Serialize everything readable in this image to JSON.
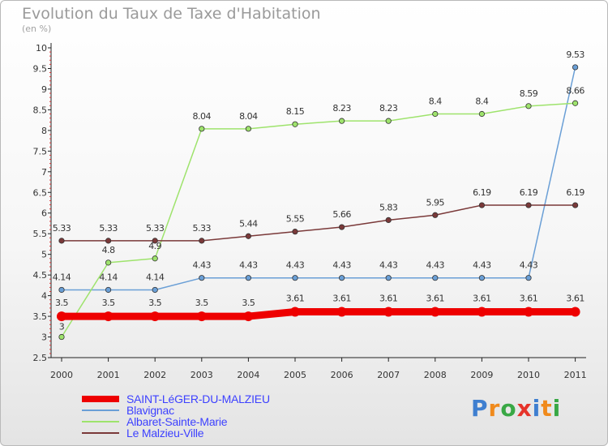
{
  "chart_data": {
    "type": "line",
    "title": "Evolution du Taux de Taxe d'Habitation",
    "ylabel": "(en %)",
    "xlabel": "",
    "ylim": [
      2.5,
      10
    ],
    "grid": false,
    "legend_position": "bottom-left",
    "x": [
      "2000",
      "2001",
      "2002",
      "2003",
      "2004",
      "2005",
      "2006",
      "2007",
      "2008",
      "2009",
      "2010",
      "2011"
    ],
    "yticks": [
      "2.5",
      "3",
      "3.5",
      "4",
      "4.5",
      "5",
      "5.5",
      "6",
      "6.5",
      "7",
      "7.5",
      "8",
      "8.5",
      "9",
      "9.5",
      "10"
    ],
    "series": [
      {
        "name": "SAINT-LéGER-DU-MALZIEU",
        "color": "#ee0000",
        "values": [
          3.5,
          3.5,
          3.5,
          3.5,
          3.5,
          3.61,
          3.61,
          3.61,
          3.61,
          3.61,
          3.61,
          3.61
        ],
        "labels": [
          "3.5",
          "3.5",
          "3.5",
          "3.5",
          "3.5",
          "3.61",
          "3.61",
          "3.61",
          "3.61",
          "3.61",
          "3.61",
          "3.61"
        ]
      },
      {
        "name": "Blavignac",
        "color": "#6a9fd6",
        "values": [
          4.14,
          4.14,
          4.14,
          4.43,
          4.43,
          4.43,
          4.43,
          4.43,
          4.43,
          4.43,
          4.43,
          9.53
        ],
        "labels": [
          "4.14",
          "4.14",
          "4.14",
          "4.43",
          "4.43",
          "4.43",
          "4.43",
          "4.43",
          "4.43",
          "4.43",
          "4.43",
          "9.53"
        ]
      },
      {
        "name": "Albaret-Sainte-Marie",
        "color": "#9ee36c",
        "values": [
          3,
          4.8,
          4.9,
          8.04,
          8.04,
          8.15,
          8.23,
          8.23,
          8.4,
          8.4,
          8.59,
          8.66
        ],
        "labels": [
          "3",
          "4.8",
          "4.9",
          "8.04",
          "8.04",
          "8.15",
          "8.23",
          "8.23",
          "8.4",
          "8.4",
          "8.59",
          "8.66"
        ]
      },
      {
        "name": "Le Malzieu-Ville",
        "color": "#7a3939",
        "values": [
          5.33,
          5.33,
          5.33,
          5.33,
          5.44,
          5.55,
          5.66,
          5.83,
          5.95,
          6.19,
          6.19,
          6.19
        ],
        "labels": [
          "5.33",
          "5.33",
          "5.33",
          "5.33",
          "5.44",
          "5.55",
          "5.66",
          "5.83",
          "5.95",
          "6.19",
          "6.19",
          "6.19"
        ]
      }
    ]
  },
  "legend": {
    "item_0": "SAINT-LéGER-DU-MALZIEU",
    "item_1": "Blavignac",
    "item_2": "Albaret-Sainte-Marie",
    "item_3": "Le Malzieu-Ville"
  },
  "logo": {
    "text": "Proxiti",
    "letter_colors": [
      "#3f7fd0",
      "#f08a1c",
      "#39a845",
      "#e6332a",
      "#3f7fd0",
      "#f08a1c",
      "#39a845"
    ]
  }
}
